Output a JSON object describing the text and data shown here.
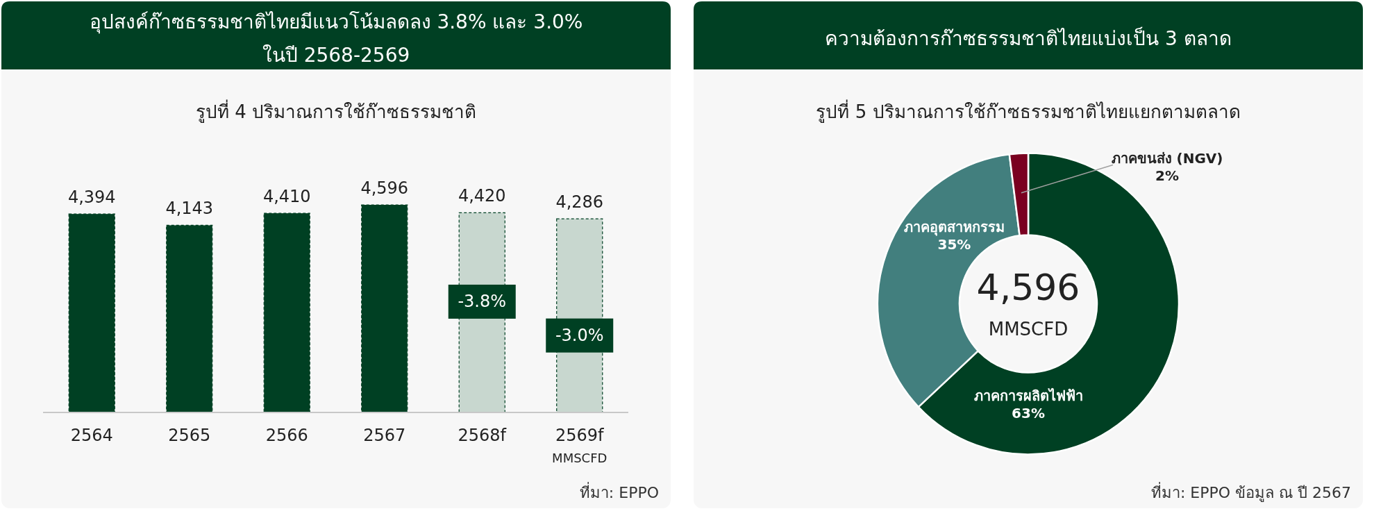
{
  "chart_data": [
    {
      "type": "bar",
      "title": "อุปสงค์ก๊าซธรรมชาติไทยมีแนวโน้มลดลง 3.8% และ 3.0%\nในปี 2568-2569",
      "subtitle": "รูปที่ 4 ปริมาณการใช้ก๊าซธรรมชาติ",
      "categories": [
        "2564",
        "2565",
        "2566",
        "2567",
        "2568f",
        "2569f"
      ],
      "values": [
        4394,
        4143,
        4410,
        4596,
        4420,
        4286
      ],
      "value_labels": [
        "4,394",
        "4,143",
        "4,410",
        "4,596",
        "4,420",
        "4,286"
      ],
      "color": "#004023",
      "colors": [
        "#004023",
        "#004023",
        "#004023",
        "#004023",
        "#c8d7cf",
        "#c8d7cf"
      ],
      "tick_labels": "x",
      "annotations": [
        "-3.8%",
        "-3.0%",
        "MMSCFD",
        "ที่มา: EPPO"
      ]
    },
    {
      "type": "donut",
      "title": "ความต้องการก๊าซธรรมชาติไทยแบ่งเป็น 3 ตลาด",
      "subtitle": "รูปที่ 5 ปริมาณการใช้ก๊าซธรรมชาติไทยแยกตามตลาด",
      "categories": [
        "ภาคการผลิตไฟฟ้า",
        "ภาคอุตสาหกรรม",
        "ภาคขนส่ง (NGV)"
      ],
      "values": [
        63,
        35,
        2
      ],
      "colors": [
        "#004023",
        "#427f7e",
        "#7a0020"
      ],
      "value_labels": [
        "63%",
        "35%",
        "2%"
      ],
      "annotations": [
        "4,596",
        "MMSCFD",
        "ที่มา: EPPO ข้อมูล ณ ปี 2567"
      ]
    }
  ]
}
